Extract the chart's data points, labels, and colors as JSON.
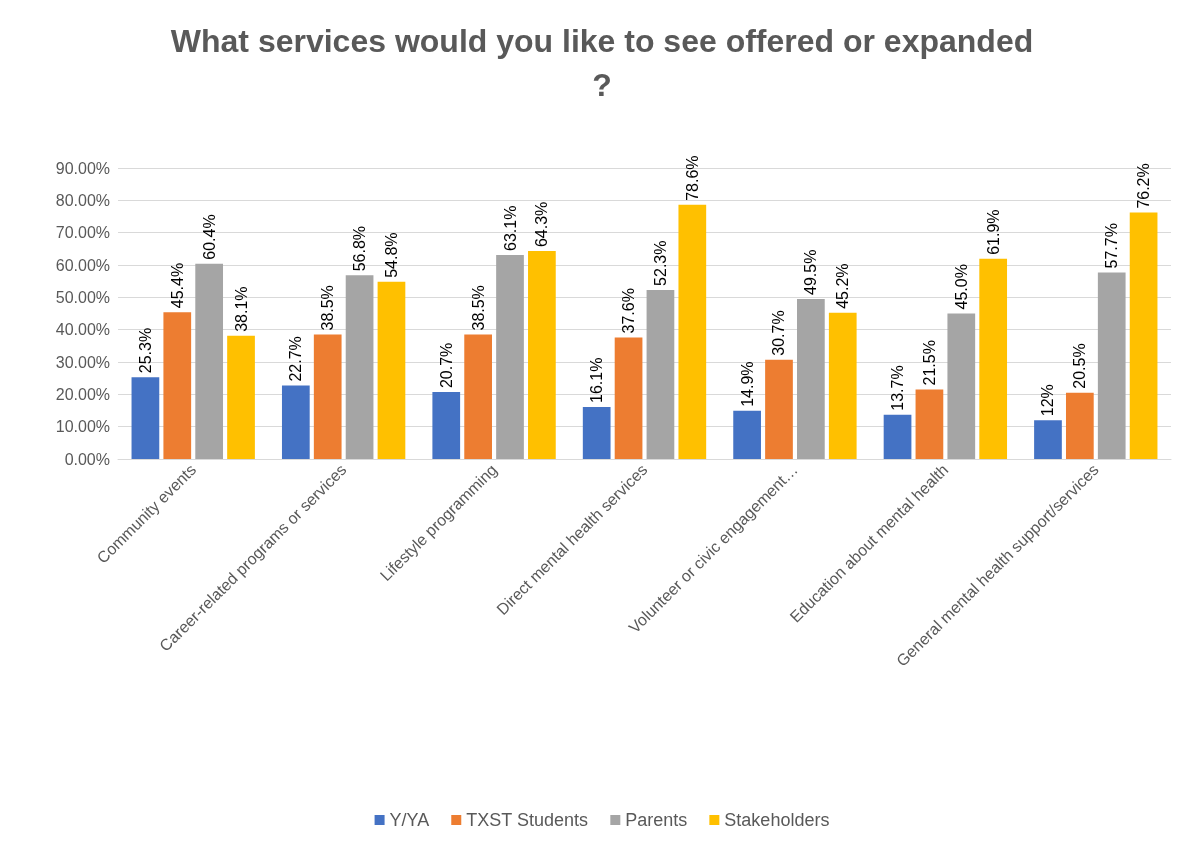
{
  "chart_data": {
    "type": "bar",
    "title": "What services would you like to see offered or expanded?",
    "categories": [
      "Community events",
      "Career-related programs or services",
      "Lifestyle programming",
      "Direct mental health services",
      "Volunteer or civic engagement…",
      "Education about mental health",
      "General mental health support/services"
    ],
    "series": [
      {
        "name": "Y/YA",
        "color": "#4472c4",
        "values": [
          25.3,
          22.7,
          20.7,
          16.1,
          14.9,
          13.7,
          12
        ],
        "value_labels": [
          "25.3%",
          "22.7%",
          "20.7%",
          "16.1%",
          "14.9%",
          "13.7%",
          "12%"
        ]
      },
      {
        "name": "TXST Students",
        "color": "#ed7d31",
        "values": [
          45.4,
          38.5,
          38.5,
          37.6,
          30.7,
          21.5,
          20.5
        ],
        "value_labels": [
          "45.4%",
          "38.5%",
          "38.5%",
          "37.6%",
          "30.7%",
          "21.5%",
          "20.5%"
        ]
      },
      {
        "name": "Parents",
        "color": "#a5a5a5",
        "values": [
          60.4,
          56.8,
          63.1,
          52.3,
          49.5,
          45.0,
          57.7
        ],
        "value_labels": [
          "60.4%",
          "56.8%",
          "63.1%",
          "52.3%",
          "49.5%",
          "45.0%",
          "57.7%"
        ]
      },
      {
        "name": "Stakeholders",
        "color": "#ffc000",
        "values": [
          38.1,
          54.8,
          64.3,
          78.6,
          45.2,
          61.9,
          76.2
        ],
        "value_labels": [
          "38.1%",
          "54.8%",
          "64.3%",
          "78.6%",
          "45.2%",
          "61.9%",
          "76.2%"
        ]
      }
    ],
    "ylim": [
      0,
      90
    ],
    "yticks": [
      {
        "value": 0,
        "label": "0.00%"
      },
      {
        "value": 10,
        "label": "10.00%"
      },
      {
        "value": 20,
        "label": "20.00%"
      },
      {
        "value": 30,
        "label": "30.00%"
      },
      {
        "value": 40,
        "label": "40.00%"
      },
      {
        "value": 50,
        "label": "50.00%"
      },
      {
        "value": 60,
        "label": "60.00%"
      },
      {
        "value": 70,
        "label": "70.00%"
      },
      {
        "value": 80,
        "label": "80.00%"
      },
      {
        "value": 90,
        "label": "90.00%"
      }
    ],
    "grid": "y",
    "legend": "bottom"
  }
}
